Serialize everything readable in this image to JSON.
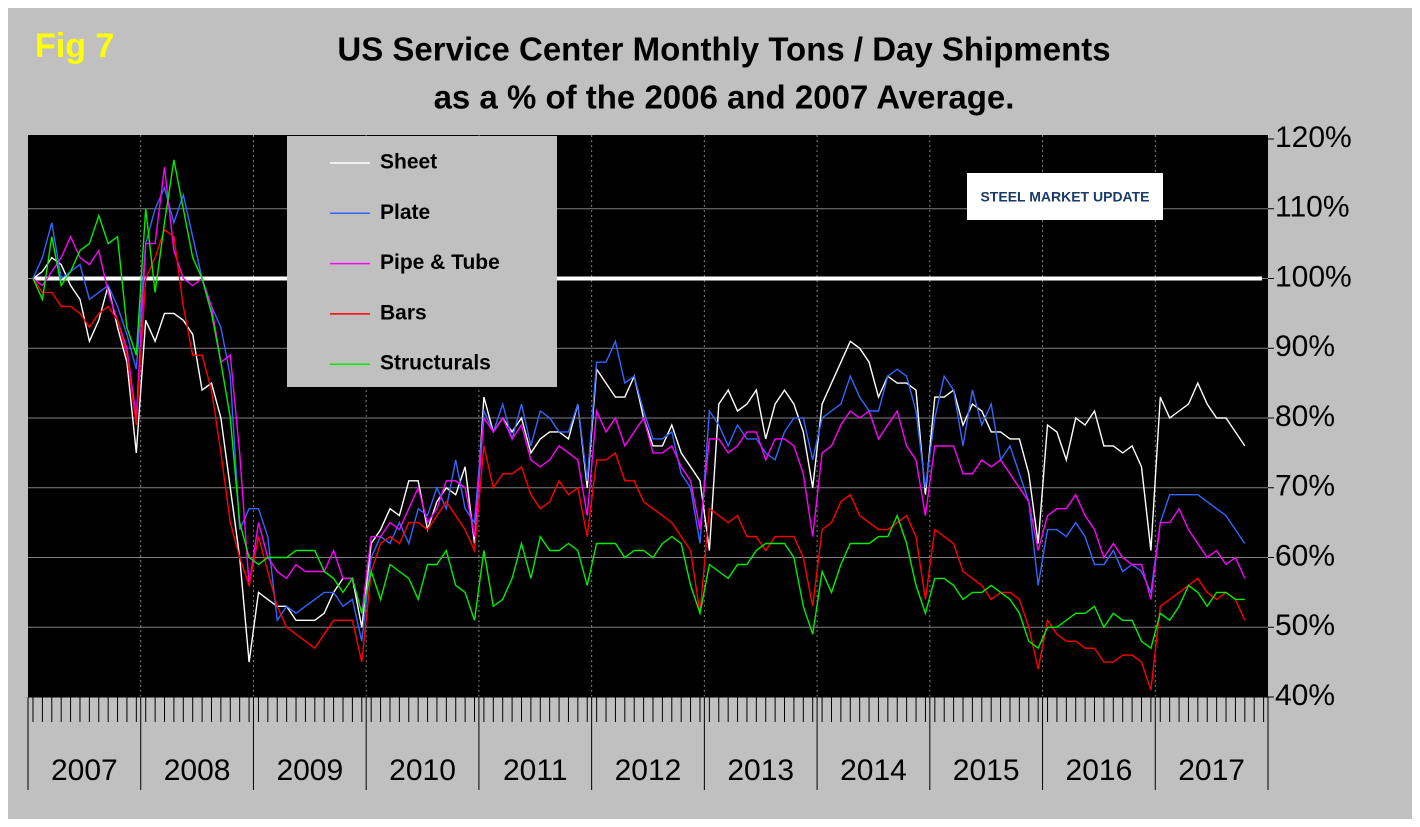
{
  "chart_data": {
    "type": "line",
    "figure_label": "Fig 7",
    "title": "US Service Center Monthly Tons / Day Shipments",
    "subtitle": "as a % of the 2006 and 2007 Average.",
    "logo": "STEEL MARKET UPDATE",
    "years": [
      "2007",
      "2008",
      "2009",
      "2010",
      "2011",
      "2012",
      "2013",
      "2014",
      "2015",
      "2016",
      "2017"
    ],
    "ylim": [
      40,
      120
    ],
    "yticks": [
      {
        "value": 40,
        "label": "40%"
      },
      {
        "value": 50,
        "label": "50%"
      },
      {
        "value": 60,
        "label": "60%"
      },
      {
        "value": 70,
        "label": "70%"
      },
      {
        "value": 80,
        "label": "80%"
      },
      {
        "value": 90,
        "label": "90%"
      },
      {
        "value": 100,
        "label": "100%"
      },
      {
        "value": 110,
        "label": "110%"
      },
      {
        "value": 120,
        "label": "120%"
      }
    ],
    "grid": true,
    "reference_line": 100,
    "legend": "top-left",
    "series": [
      {
        "name": "Sheet",
        "color": "#ffffff",
        "values": [
          100,
          101,
          103,
          102,
          99,
          97,
          91,
          94,
          99,
          93,
          88,
          75,
          94,
          91,
          95,
          95,
          94,
          92,
          84,
          85,
          80,
          70,
          60,
          45,
          55,
          54,
          53,
          53,
          51,
          51,
          51,
          52,
          55,
          57,
          57,
          50,
          62,
          64,
          67,
          66,
          71,
          71,
          64,
          68,
          70,
          69,
          73,
          62,
          83,
          78,
          80,
          78,
          80,
          75,
          77,
          78,
          78,
          77,
          82,
          70,
          87,
          85,
          83,
          83,
          86,
          80,
          76,
          76,
          79,
          75,
          73,
          71,
          61,
          82,
          84,
          81,
          82,
          84,
          77,
          82,
          84,
          82,
          78,
          70,
          82,
          85,
          88,
          91,
          90,
          88,
          83,
          86,
          85,
          85,
          84,
          69,
          83,
          83,
          84,
          79,
          82,
          81,
          78,
          78,
          77,
          77,
          72,
          62,
          79,
          78,
          74,
          80,
          79,
          81,
          76,
          76,
          75,
          76,
          73,
          61,
          83,
          80,
          81,
          82,
          85,
          82,
          80,
          80,
          78,
          76
        ]
      },
      {
        "name": "Plate",
        "color": "#3366ff",
        "values": [
          100,
          103,
          108,
          100,
          101,
          102,
          97,
          98,
          99,
          96,
          92,
          87,
          105,
          110,
          113,
          108,
          112,
          106,
          100,
          96,
          93,
          86,
          64,
          67,
          67,
          63,
          51,
          53,
          52,
          53,
          54,
          55,
          55,
          53,
          54,
          48,
          60,
          63,
          62,
          65,
          62,
          67,
          66,
          70,
          67,
          74,
          67,
          65,
          81,
          78,
          82,
          77,
          82,
          76,
          81,
          80,
          78,
          78,
          82,
          71,
          88,
          88,
          91,
          85,
          86,
          81,
          77,
          77,
          78,
          72,
          70,
          62,
          81,
          79,
          76,
          79,
          77,
          77,
          75,
          74,
          78,
          80,
          80,
          74,
          80,
          81,
          82,
          86,
          83,
          81,
          81,
          86,
          87,
          86,
          81,
          70,
          80,
          86,
          84,
          76,
          84,
          79,
          82,
          74,
          76,
          72,
          68,
          56,
          64,
          64,
          63,
          65,
          63,
          59,
          59,
          61,
          58,
          59,
          58,
          55,
          65,
          69,
          69,
          69,
          69,
          68,
          67,
          66,
          64,
          62
        ]
      },
      {
        "name": "Pipe & Tube",
        "color": "#ff00ff",
        "values": [
          100,
          99,
          101,
          103,
          106,
          103,
          102,
          104,
          98,
          94,
          90,
          80,
          105,
          105,
          116,
          104,
          100,
          99,
          100,
          96,
          88,
          89,
          75,
          56,
          65,
          60,
          58,
          57,
          59,
          58,
          58,
          58,
          61,
          57,
          57,
          52,
          63,
          63,
          65,
          64,
          67,
          70,
          65,
          67,
          71,
          71,
          70,
          63,
          80,
          78,
          80,
          77,
          79,
          74,
          73,
          74,
          76,
          75,
          74,
          66,
          81,
          78,
          80,
          76,
          78,
          80,
          75,
          75,
          76,
          73,
          71,
          64,
          77,
          77,
          75,
          76,
          78,
          78,
          74,
          77,
          77,
          76,
          72,
          63,
          75,
          76,
          79,
          81,
          80,
          81,
          77,
          79,
          81,
          76,
          74,
          66,
          76,
          76,
          76,
          72,
          72,
          74,
          73,
          74,
          72,
          70,
          68,
          61,
          66,
          67,
          67,
          69,
          66,
          64,
          60,
          62,
          60,
          59,
          59,
          54,
          65,
          65,
          67,
          64,
          62,
          60,
          61,
          59,
          60,
          57
        ]
      },
      {
        "name": "Bars",
        "color": "#ff0000",
        "values": [
          100,
          98,
          98,
          96,
          96,
          95,
          93,
          95,
          96,
          94,
          89,
          79,
          100,
          103,
          107,
          106,
          96,
          89,
          89,
          84,
          75,
          65,
          60,
          56,
          63,
          58,
          53,
          50,
          49,
          48,
          47,
          49,
          51,
          51,
          51,
          45,
          58,
          62,
          63,
          62,
          65,
          65,
          64,
          66,
          68,
          66,
          64,
          61,
          76,
          70,
          72,
          72,
          73,
          69,
          67,
          68,
          71,
          69,
          70,
          63,
          74,
          74,
          75,
          71,
          71,
          68,
          67,
          66,
          65,
          63,
          61,
          52,
          67,
          66,
          65,
          66,
          63,
          63,
          61,
          63,
          63,
          63,
          60,
          53,
          64,
          65,
          68,
          69,
          66,
          65,
          64,
          64,
          65,
          66,
          63,
          54,
          64,
          63,
          62,
          58,
          57,
          56,
          54,
          55,
          55,
          54,
          50,
          44,
          51,
          49,
          48,
          48,
          47,
          47,
          45,
          45,
          46,
          46,
          45,
          41,
          53,
          54,
          55,
          56,
          57,
          55,
          54,
          55,
          54,
          51
        ]
      },
      {
        "name": "Structurals",
        "color": "#00ee00",
        "values": [
          100,
          97,
          106,
          99,
          101,
          104,
          105,
          109,
          105,
          106,
          93,
          89,
          110,
          98,
          108,
          117,
          110,
          103,
          100,
          95,
          88,
          80,
          65,
          60,
          59,
          60,
          60,
          60,
          61,
          61,
          61,
          58,
          57,
          55,
          57,
          52,
          58,
          54,
          59,
          58,
          57,
          54,
          59,
          59,
          61,
          56,
          55,
          51,
          61,
          53,
          54,
          57,
          62,
          57,
          63,
          61,
          61,
          62,
          61,
          56,
          62,
          62,
          62,
          60,
          61,
          61,
          60,
          62,
          63,
          62,
          56,
          52,
          59,
          58,
          57,
          59,
          59,
          61,
          62,
          62,
          62,
          60,
          53,
          49,
          58,
          55,
          59,
          62,
          62,
          62,
          63,
          63,
          66,
          62,
          56,
          52,
          57,
          57,
          56,
          54,
          55,
          55,
          56,
          55,
          54,
          52,
          48,
          47,
          50,
          50,
          51,
          52,
          52,
          53,
          50,
          52,
          51,
          51,
          48,
          47,
          52,
          51,
          53,
          56,
          55,
          53,
          55,
          55,
          54,
          54
        ]
      }
    ]
  }
}
